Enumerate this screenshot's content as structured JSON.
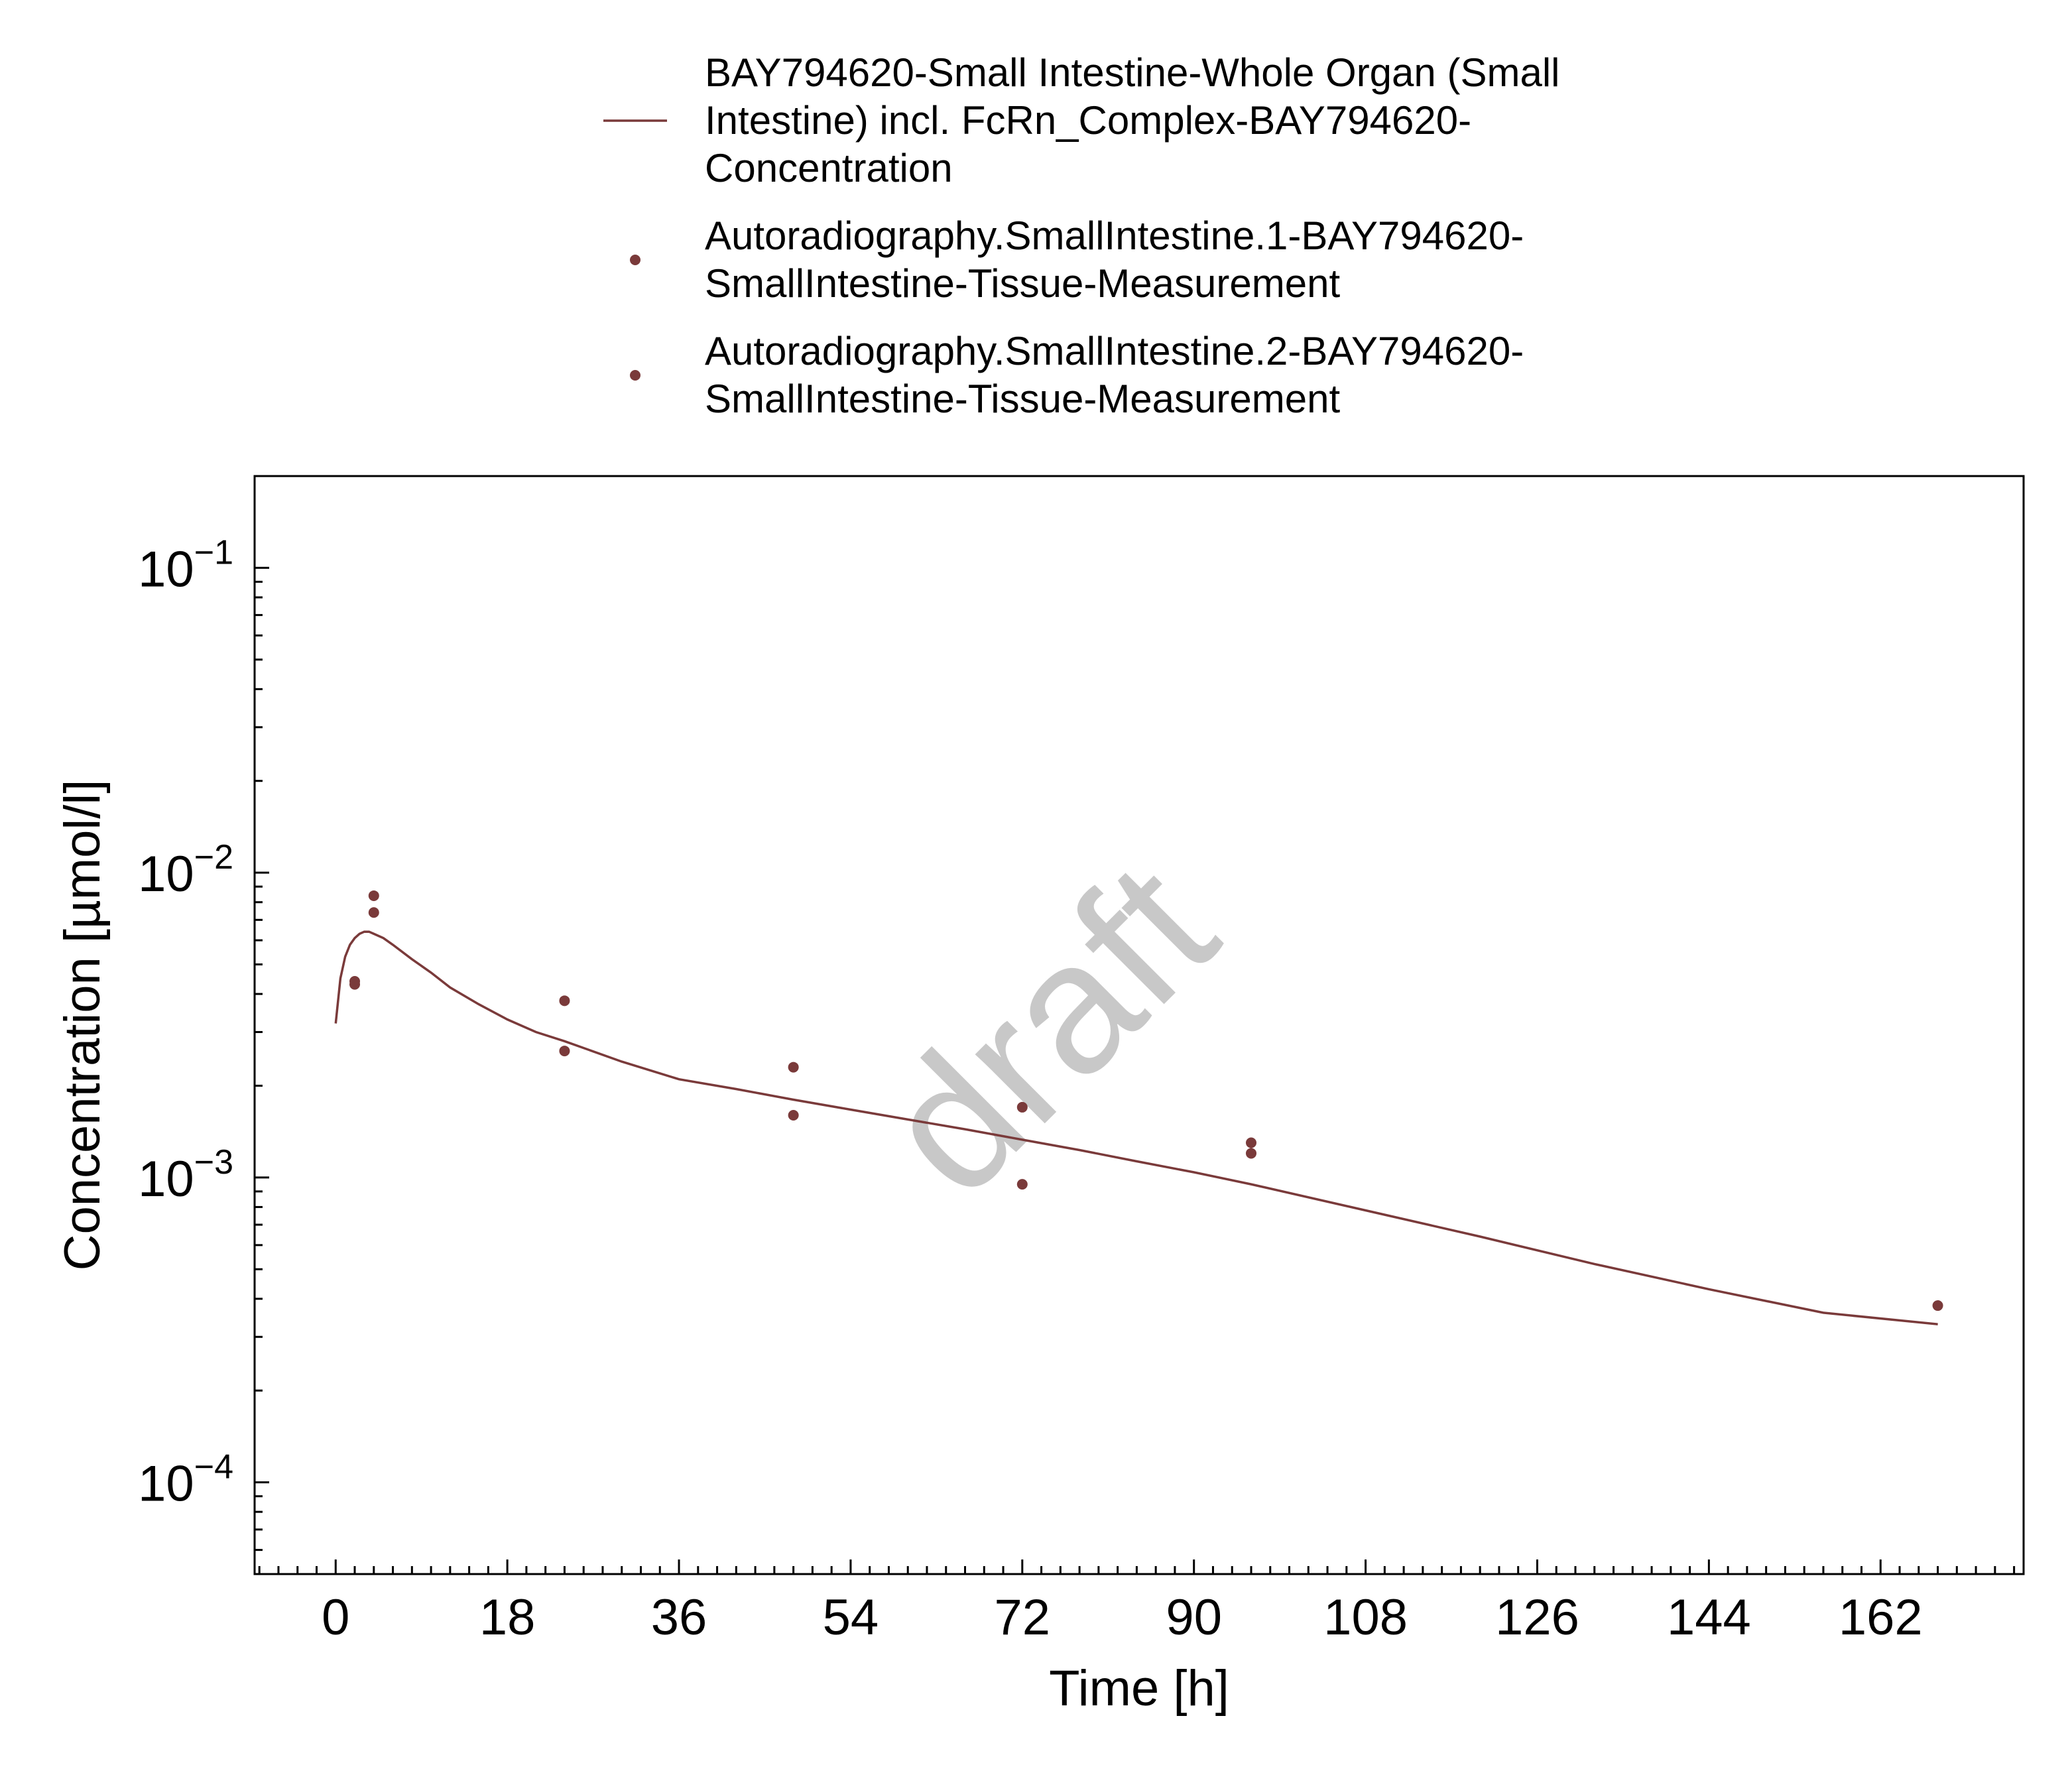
{
  "chart_data": {
    "type": "scatter",
    "xlabel": "Time [h]",
    "ylabel": "Concentration [µmol/l]",
    "xlim": [
      -8.5,
      177
    ],
    "ylim": [
      5e-05,
      0.2
    ],
    "yscale": "log",
    "x_ticks": [
      0,
      18,
      36,
      54,
      72,
      90,
      108,
      126,
      144,
      162
    ],
    "y_ticks": [
      {
        "value": 0.0001,
        "base": "10",
        "exp": "−4"
      },
      {
        "value": 0.001,
        "base": "10",
        "exp": "−3"
      },
      {
        "value": 0.01,
        "base": "10",
        "exp": "−2"
      },
      {
        "value": 0.1,
        "base": "10",
        "exp": "−1"
      }
    ],
    "grid": false,
    "legend_position": "top",
    "watermark": "draft",
    "series": [
      {
        "name": "BAY794620-Small Intestine-Whole Organ (Small Intestine) incl. FcRn_Complex-BAY794620-Concentration",
        "legend_lines": [
          "BAY794620-Small Intestine-Whole Organ (Small",
          "Intestine) incl. FcRn_Complex-BAY794620-",
          "Concentration"
        ],
        "kind": "line",
        "color": "#7a3a3a",
        "x": [
          0,
          0.5,
          1,
          1.5,
          2,
          2.5,
          3,
          3.5,
          4,
          5,
          6,
          8,
          10,
          12,
          15,
          18,
          21,
          24,
          30,
          36,
          42,
          48,
          54,
          60,
          66,
          72,
          78,
          84,
          90,
          96,
          108,
          120,
          132,
          144,
          156,
          168
        ],
        "y": [
          0.0032,
          0.0045,
          0.0053,
          0.0058,
          0.0061,
          0.0063,
          0.0064,
          0.0064,
          0.0063,
          0.0061,
          0.0058,
          0.0052,
          0.0047,
          0.0042,
          0.0037,
          0.0033,
          0.003,
          0.0028,
          0.0024,
          0.0021,
          0.00195,
          0.0018,
          0.00167,
          0.00155,
          0.00144,
          0.00133,
          0.00123,
          0.00113,
          0.00104,
          0.00095,
          0.00078,
          0.00064,
          0.00052,
          0.00043,
          0.00036,
          0.00033
        ]
      },
      {
        "name": "Autoradiography.SmallIntestine.1-BAY794620-SmallIntestine-Tissue-Measurement",
        "legend_lines": [
          "Autoradiography.SmallIntestine.1-BAY794620-",
          "SmallIntestine-Tissue-Measurement"
        ],
        "kind": "points",
        "color": "#7a3a3a",
        "x": [
          2,
          4,
          24,
          48,
          72,
          96,
          168
        ],
        "y": [
          0.0044,
          0.0084,
          0.0038,
          0.0023,
          0.0017,
          0.0013,
          0.00038
        ]
      },
      {
        "name": "Autoradiography.SmallIntestine.2-BAY794620-SmallIntestine-Tissue-Measurement",
        "legend_lines": [
          "Autoradiography.SmallIntestine.2-BAY794620-",
          "SmallIntestine-Tissue-Measurement"
        ],
        "kind": "points",
        "color": "#7a3a3a",
        "x": [
          2,
          4,
          24,
          48,
          72,
          96
        ],
        "y": [
          0.0043,
          0.0074,
          0.0026,
          0.0016,
          0.00095,
          0.0012
        ]
      }
    ]
  }
}
